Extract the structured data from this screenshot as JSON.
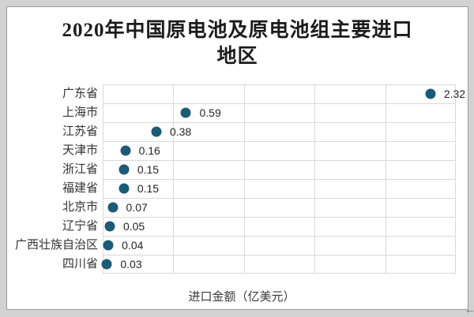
{
  "title": {
    "line1": "2020年中国原电池及原电池组主要进口",
    "line2": "地区"
  },
  "chart_data": {
    "type": "scatter",
    "title": "2020年中国原电池及原电池组主要进口地区",
    "categories": [
      "广东省",
      "上海市",
      "江苏省",
      "天津市",
      "浙江省",
      "福建省",
      "北京市",
      "辽宁省",
      "广西壮族自治区",
      "四川省"
    ],
    "values": [
      2.32,
      0.59,
      0.38,
      0.16,
      0.15,
      0.15,
      0.07,
      0.05,
      0.04,
      0.03
    ],
    "value_labels": [
      "2.32",
      "0.59",
      "0.38",
      "0.16",
      "0.15",
      "0.15",
      "0.07",
      "0.05",
      "0.04",
      "0.03"
    ],
    "xlabel": "进口金额（亿美元）",
    "ylabel": "",
    "xlim": [
      0,
      2.5
    ],
    "grid_step": 0.5,
    "grid": true,
    "legend": "none",
    "orientation": "horizontal-category-rows"
  },
  "colors": {
    "dot": "#1a5b78",
    "grid": "#d9d9d9",
    "card_background": "#ffffff",
    "card_border": "#9a9a9a",
    "page_background": "#d2d2d2",
    "title_text": "#1b1b1b",
    "label_text": "#333333",
    "value_text": "#262626"
  },
  "cursor": {
    "glyph": "←"
  }
}
